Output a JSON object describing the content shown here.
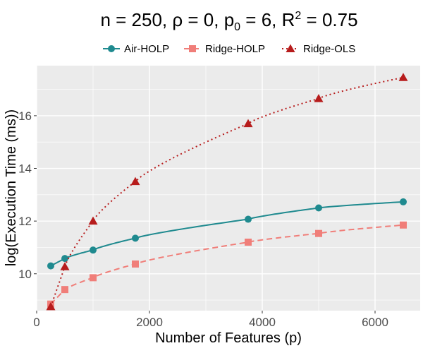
{
  "chart_data": {
    "type": "line",
    "title": {
      "main": "n = 250, ρ = 0, p",
      "sub0": "0",
      "mid": " = 6, R",
      "sup": "2",
      "tail": " = 0.75"
    },
    "xlabel": "Number of Features (p)",
    "ylabel": "log(Execution Time (ms))",
    "xlim": [
      0,
      6800
    ],
    "ylim": [
      8.6,
      17.9
    ],
    "xticks": [
      0,
      2000,
      4000,
      6000
    ],
    "yticks": [
      10,
      12,
      14,
      16
    ],
    "x": [
      250,
      500,
      1000,
      1750,
      3750,
      5000,
      6500
    ],
    "series": [
      {
        "name": "Air-HOLP",
        "color": "#1f8a8f",
        "marker": "circle",
        "dash": "solid",
        "values": [
          10.3,
          10.58,
          10.9,
          11.35,
          12.07,
          12.5,
          12.73
        ]
      },
      {
        "name": "Ridge-HOLP",
        "color": "#f07e79",
        "marker": "square",
        "dash": "dashed",
        "values": [
          8.85,
          9.4,
          9.85,
          10.37,
          11.2,
          11.53,
          11.85
        ]
      },
      {
        "name": "Ridge-OLS",
        "color": "#b71c1c",
        "marker": "triangle",
        "dash": "dotted",
        "values": [
          8.75,
          10.27,
          12.0,
          13.5,
          15.7,
          16.65,
          17.45
        ]
      }
    ],
    "legend_position": "top"
  }
}
